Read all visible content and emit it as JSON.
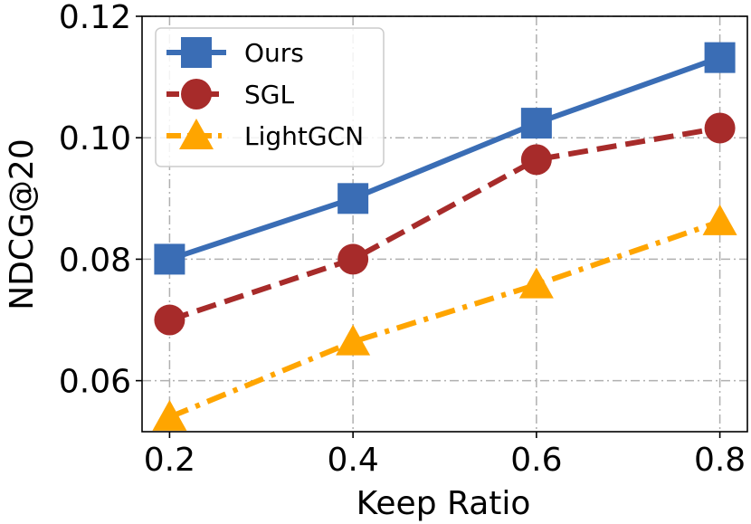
{
  "chart_data": {
    "type": "line",
    "title": "",
    "xlabel": "Keep Ratio",
    "ylabel": "NDCG@20",
    "x": [
      0.2,
      0.4,
      0.6,
      0.8
    ],
    "xticks": [
      "0.2",
      "0.4",
      "0.6",
      "0.8"
    ],
    "yticks": [
      "0.06",
      "0.08",
      "0.10",
      "0.12"
    ],
    "ytick_values": [
      0.06,
      0.08,
      0.1,
      0.12
    ],
    "xlim": [
      0.17,
      0.83
    ],
    "ylim": [
      0.0516,
      0.12
    ],
    "grid": true,
    "legend_position": "top-left",
    "series": [
      {
        "name": "Ours",
        "values": [
          0.08,
          0.09,
          0.1024,
          0.1132
        ],
        "color": "#3a6db5",
        "marker": "square",
        "dash": "solid"
      },
      {
        "name": "SGL",
        "values": [
          0.07,
          0.08,
          0.0964,
          0.1016
        ],
        "color": "#a72b2a",
        "marker": "circle",
        "dash": "dashed"
      },
      {
        "name": "LightGCN",
        "values": [
          0.054,
          0.0664,
          0.0758,
          0.0862
        ],
        "color": "#ffa500",
        "marker": "triangle",
        "dash": "dashdot"
      }
    ]
  }
}
